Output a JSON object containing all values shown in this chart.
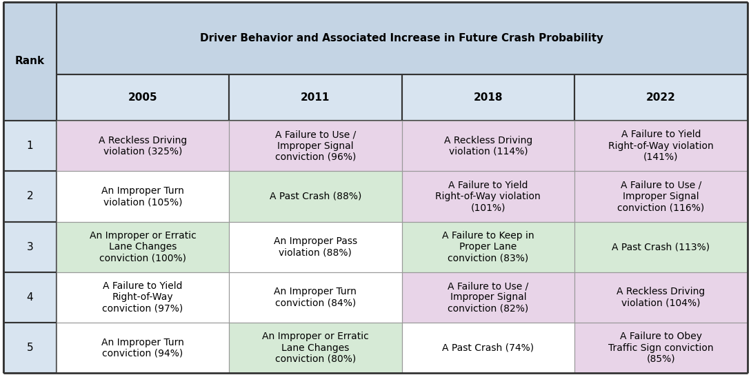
{
  "title": "Driver Behavior and Associated Increase in Future Crash Probability",
  "col_headers": [
    "2005",
    "2011",
    "2018",
    "2022"
  ],
  "rank_col": "Rank",
  "rows": [
    {
      "rank": "1",
      "cells": [
        "A Reckless Driving\nviolation (325%)",
        "A Failure to Use /\nImproper Signal\nconviction (96%)",
        "A Reckless Driving\nviolation (114%)",
        "A Failure to Yield\nRight-of-Way violation\n(141%)"
      ],
      "colors": [
        "#e8d4e8",
        "#e8d4e8",
        "#e8d4e8",
        "#e8d4e8"
      ]
    },
    {
      "rank": "2",
      "cells": [
        "An Improper Turn\nviolation (105%)",
        "A Past Crash (88%)",
        "A Failure to Yield\nRight-of-Way violation\n(101%)",
        "A Failure to Use /\nImproper Signal\nconviction (116%)"
      ],
      "colors": [
        "#ffffff",
        "#d6ead6",
        "#e8d4e8",
        "#e8d4e8"
      ]
    },
    {
      "rank": "3",
      "cells": [
        "An Improper or Erratic\nLane Changes\nconviction (100%)",
        "An Improper Pass\nviolation (88%)",
        "A Failure to Keep in\nProper Lane\nconviction (83%)",
        "A Past Crash (113%)"
      ],
      "colors": [
        "#d6ead6",
        "#ffffff",
        "#d6ead6",
        "#d6ead6"
      ]
    },
    {
      "rank": "4",
      "cells": [
        "A Failure to Yield\nRight-of-Way\nconviction (97%)",
        "An Improper Turn\nconviction (84%)",
        "A Failure to Use /\nImproper Signal\nconviction (82%)",
        "A Reckless Driving\nviolation (104%)"
      ],
      "colors": [
        "#ffffff",
        "#ffffff",
        "#e8d4e8",
        "#e8d4e8"
      ]
    },
    {
      "rank": "5",
      "cells": [
        "An Improper Turn\nconviction (94%)",
        "An Improper or Erratic\nLane Changes\nconviction (80%)",
        "A Past Crash (74%)",
        "A Failure to Obey\nTraffic Sign conviction\n(85%)"
      ],
      "colors": [
        "#ffffff",
        "#d6ead6",
        "#ffffff",
        "#e8d4e8"
      ]
    }
  ],
  "header_bg": "#c4d4e4",
  "subheader_bg": "#d8e4f0",
  "rank_col_bg": "#d8e4f0",
  "outer_border_color": "#333333",
  "inner_border_color": "#999999",
  "title_fontsize": 11.0,
  "header_fontsize": 11.0,
  "cell_fontsize": 10.0,
  "rank_fontsize": 11.0
}
